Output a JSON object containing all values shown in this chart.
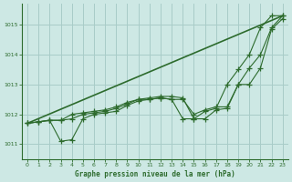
{
  "background_color": "#cde8e4",
  "plot_bg_color": "#cde8e4",
  "grid_color": "#a8ccc8",
  "line_color": "#2d6b2d",
  "title": "Graphe pression niveau de la mer (hPa)",
  "xlim": [
    -0.5,
    23.5
  ],
  "ylim": [
    1010.5,
    1015.7
  ],
  "yticks": [
    1011,
    1012,
    1013,
    1014,
    1015
  ],
  "xticks": [
    0,
    1,
    2,
    3,
    4,
    5,
    6,
    7,
    8,
    9,
    10,
    11,
    12,
    13,
    14,
    15,
    16,
    17,
    18,
    19,
    20,
    21,
    22,
    23
  ],
  "series_smooth": {
    "x": [
      0,
      23
    ],
    "y": [
      1011.7,
      1015.3
    ],
    "linewidth": 1.2
  },
  "series_markers": [
    {
      "x": [
        0,
        1,
        2,
        3,
        4,
        5,
        6,
        7,
        8,
        9,
        10,
        11,
        12,
        13,
        14,
        15,
        16,
        17,
        18,
        19,
        20,
        21,
        22,
        23
      ],
      "y": [
        1011.7,
        1011.75,
        1011.8,
        1011.8,
        1011.85,
        1012.0,
        1012.05,
        1012.1,
        1012.2,
        1012.35,
        1012.5,
        1012.55,
        1012.6,
        1012.6,
        1012.55,
        1011.85,
        1011.85,
        1012.15,
        1012.2,
        1013.0,
        1013.55,
        1014.0,
        1014.9,
        1015.3
      ]
    },
    {
      "x": [
        0,
        1,
        2,
        3,
        4,
        5,
        6,
        7,
        8,
        9,
        10,
        11,
        12,
        13,
        14,
        15,
        16,
        17,
        18,
        19,
        20,
        21,
        22,
        23
      ],
      "y": [
        1011.7,
        1011.75,
        1011.8,
        1011.1,
        1011.15,
        1011.85,
        1012.0,
        1012.05,
        1012.1,
        1012.3,
        1012.45,
        1012.5,
        1012.55,
        1012.5,
        1011.85,
        1011.85,
        1012.1,
        1012.2,
        1013.0,
        1013.5,
        1014.0,
        1014.9,
        1015.3,
        1015.3
      ]
    },
    {
      "x": [
        0,
        1,
        2,
        3,
        4,
        5,
        6,
        7,
        8,
        9,
        10,
        11,
        12,
        13,
        14,
        15,
        16,
        17,
        18,
        19,
        20,
        21,
        22,
        23
      ],
      "y": [
        1011.7,
        1011.75,
        1011.8,
        1011.8,
        1012.0,
        1012.05,
        1012.1,
        1012.15,
        1012.25,
        1012.4,
        1012.5,
        1012.5,
        1012.55,
        1012.5,
        1012.5,
        1012.0,
        1012.15,
        1012.25,
        1012.25,
        1013.0,
        1013.0,
        1013.55,
        1014.85,
        1015.2
      ]
    }
  ]
}
